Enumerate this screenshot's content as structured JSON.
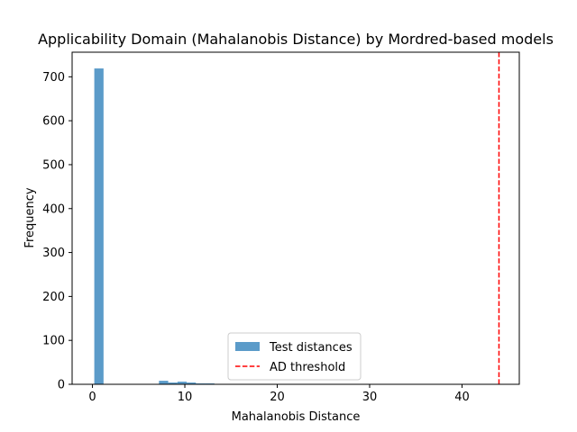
{
  "chart_data": {
    "type": "bar",
    "title": "Applicability Domain (Mahalanobis Distance) by Mordred-based models",
    "xlabel": "Mahalanobis Distance",
    "ylabel": "Frequency",
    "xlim": [
      -2.2,
      46.2
    ],
    "ylim": [
      0,
      756
    ],
    "xticks": [
      0,
      10,
      20,
      30,
      40
    ],
    "yticks": [
      0,
      100,
      200,
      300,
      400,
      500,
      600,
      700
    ],
    "bins": [
      {
        "x0": 0.2,
        "x1": 1.2,
        "count": 719
      },
      {
        "x0": 7.2,
        "x1": 8.2,
        "count": 8
      },
      {
        "x0": 8.2,
        "x1": 9.2,
        "count": 4
      },
      {
        "x0": 9.2,
        "x1": 10.2,
        "count": 6
      },
      {
        "x0": 10.2,
        "x1": 11.2,
        "count": 4
      },
      {
        "x0": 11.2,
        "x1": 12.2,
        "count": 2
      },
      {
        "x0": 12.2,
        "x1": 13.2,
        "count": 2
      }
    ],
    "threshold": 44.0,
    "series": [
      {
        "name": "Test distances",
        "color": "#5b9bc9"
      },
      {
        "name": "AD threshold",
        "color": "#ff0000"
      }
    ],
    "legend_position": "lower-center",
    "grid": false
  }
}
